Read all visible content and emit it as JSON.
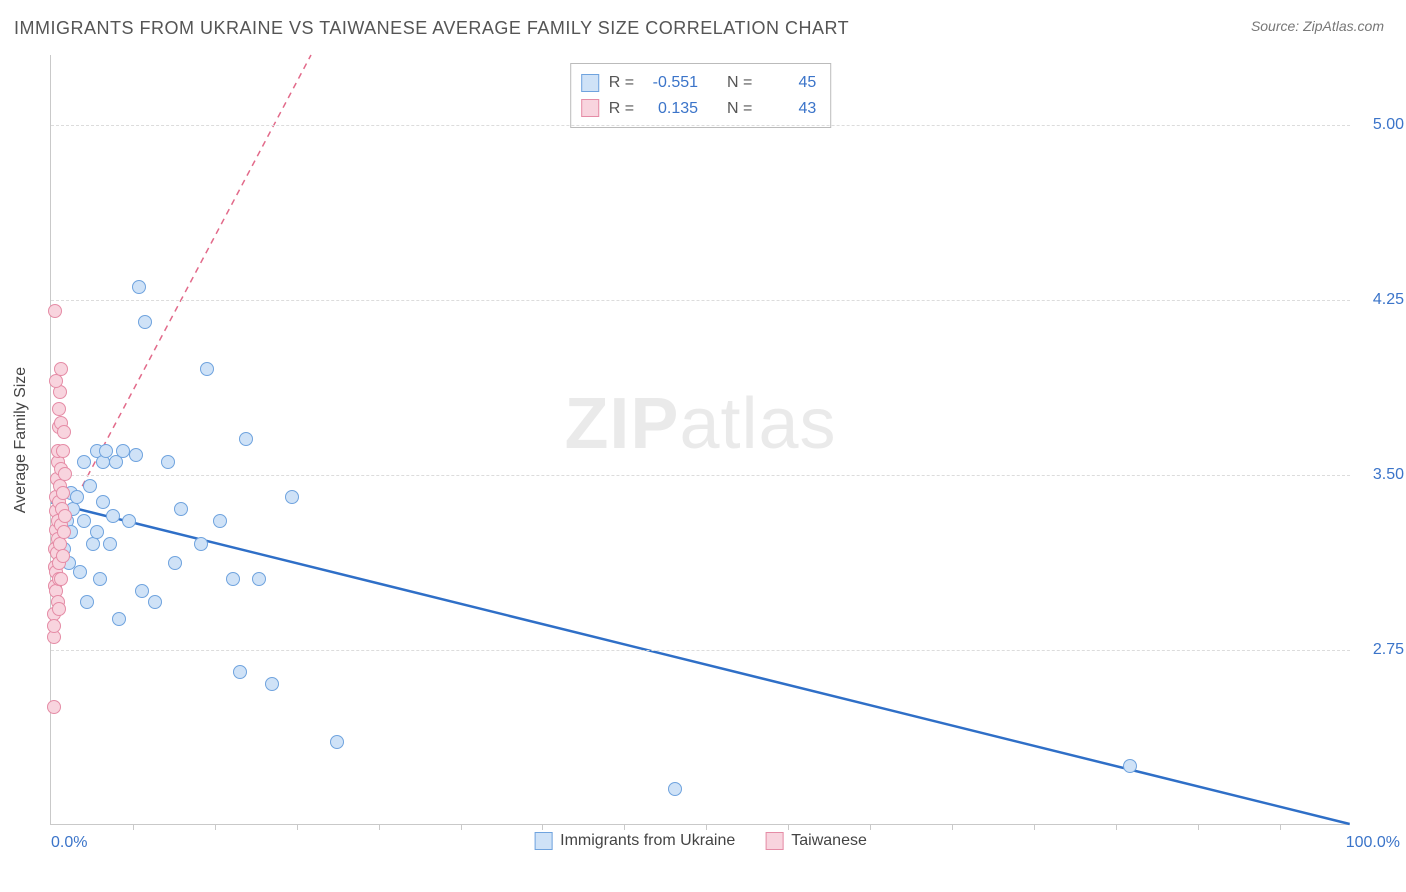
{
  "title": "IMMIGRANTS FROM UKRAINE VS TAIWANESE AVERAGE FAMILY SIZE CORRELATION CHART",
  "source_prefix": "Source: ",
  "source_name": "ZipAtlas.com",
  "watermark_bold": "ZIP",
  "watermark_light": "atlas",
  "chart": {
    "type": "scatter",
    "y_axis_label": "Average Family Size",
    "x_min_label": "0.0%",
    "x_max_label": "100.0%",
    "xlim": [
      0,
      100
    ],
    "ylim": [
      2.0,
      5.3
    ],
    "y_gridlines": [
      2.75,
      3.5,
      4.25,
      5.0
    ],
    "y_tick_labels": [
      "2.75",
      "3.50",
      "4.25",
      "5.00"
    ],
    "x_ticks": [
      6.3,
      12.6,
      18.9,
      25.2,
      31.5,
      37.8,
      44.1,
      50.4,
      56.7,
      63.0,
      69.3,
      75.6,
      81.9,
      88.2,
      94.5
    ],
    "grid_color": "#dcdcdc",
    "axis_color": "#c9c9c9",
    "tick_label_color": "#3b74c9",
    "background_color": "#ffffff",
    "marker_radius": 7,
    "marker_stroke_width": 1.2,
    "series": [
      {
        "id": "ukraine",
        "label": "Immigrants from Ukraine",
        "r_label": "R =",
        "r_value": "-0.551",
        "n_label": "N =",
        "n_value": "45",
        "fill": "#cfe2f7",
        "stroke": "#6fa3de",
        "trend_color": "#2f6fc7",
        "trend_dash": "none",
        "trend_width": 2.5,
        "trend": {
          "x1": 0,
          "y1": 3.38,
          "x2": 100,
          "y2": 2.0
        },
        "points": [
          [
            1.0,
            3.18
          ],
          [
            1.2,
            3.3
          ],
          [
            1.4,
            3.12
          ],
          [
            1.5,
            3.42
          ],
          [
            1.5,
            3.25
          ],
          [
            1.7,
            3.35
          ],
          [
            2.0,
            3.4
          ],
          [
            2.2,
            3.08
          ],
          [
            2.5,
            3.3
          ],
          [
            2.5,
            3.55
          ],
          [
            2.8,
            2.95
          ],
          [
            3.0,
            3.45
          ],
          [
            3.2,
            3.2
          ],
          [
            3.5,
            3.6
          ],
          [
            3.5,
            3.25
          ],
          [
            3.8,
            3.05
          ],
          [
            4.0,
            3.55
          ],
          [
            4.0,
            3.38
          ],
          [
            4.2,
            3.6
          ],
          [
            4.5,
            3.2
          ],
          [
            4.8,
            3.32
          ],
          [
            5.0,
            3.55
          ],
          [
            5.2,
            2.88
          ],
          [
            5.5,
            3.6
          ],
          [
            6.0,
            3.3
          ],
          [
            6.5,
            3.58
          ],
          [
            6.8,
            4.3
          ],
          [
            7.0,
            3.0
          ],
          [
            7.2,
            4.15
          ],
          [
            8.0,
            2.95
          ],
          [
            9.0,
            3.55
          ],
          [
            9.5,
            3.12
          ],
          [
            10.0,
            3.35
          ],
          [
            11.5,
            3.2
          ],
          [
            12.0,
            3.95
          ],
          [
            13.0,
            3.3
          ],
          [
            14.0,
            3.05
          ],
          [
            15.0,
            3.65
          ],
          [
            14.5,
            2.65
          ],
          [
            16.0,
            3.05
          ],
          [
            17.0,
            2.6
          ],
          [
            18.5,
            3.4
          ],
          [
            22.0,
            2.35
          ],
          [
            48.0,
            2.15
          ],
          [
            83.0,
            2.25
          ]
        ]
      },
      {
        "id": "taiwanese",
        "label": "Taiwanese",
        "r_label": "R =",
        "r_value": "0.135",
        "n_label": "N =",
        "n_value": "43",
        "fill": "#f8d4de",
        "stroke": "#e58ca6",
        "trend_color": "#e26a8a",
        "trend_dash": "6 5",
        "trend_width": 1.5,
        "trend": {
          "x1": 0,
          "y1": 3.2,
          "x2": 20,
          "y2": 5.3
        },
        "points": [
          [
            0.2,
            2.8
          ],
          [
            0.2,
            2.9
          ],
          [
            0.3,
            3.02
          ],
          [
            0.3,
            3.1
          ],
          [
            0.3,
            3.18
          ],
          [
            0.35,
            3.26
          ],
          [
            0.35,
            3.34
          ],
          [
            0.4,
            3.0
          ],
          [
            0.4,
            3.4
          ],
          [
            0.4,
            3.08
          ],
          [
            0.45,
            3.16
          ],
          [
            0.45,
            3.48
          ],
          [
            0.5,
            3.22
          ],
          [
            0.5,
            3.55
          ],
          [
            0.5,
            2.95
          ],
          [
            0.55,
            3.3
          ],
          [
            0.55,
            3.6
          ],
          [
            0.6,
            3.05
          ],
          [
            0.6,
            3.7
          ],
          [
            0.6,
            3.38
          ],
          [
            0.65,
            3.12
          ],
          [
            0.65,
            3.78
          ],
          [
            0.7,
            3.2
          ],
          [
            0.7,
            3.85
          ],
          [
            0.7,
            3.45
          ],
          [
            0.75,
            3.28
          ],
          [
            0.8,
            3.05
          ],
          [
            0.8,
            3.52
          ],
          [
            0.8,
            3.72
          ],
          [
            0.85,
            3.35
          ],
          [
            0.9,
            3.15
          ],
          [
            0.9,
            3.6
          ],
          [
            0.95,
            3.42
          ],
          [
            1.0,
            3.68
          ],
          [
            1.0,
            3.25
          ],
          [
            1.05,
            3.5
          ],
          [
            1.1,
            3.32
          ],
          [
            0.3,
            4.2
          ],
          [
            0.2,
            2.5
          ],
          [
            0.25,
            2.85
          ],
          [
            0.6,
            2.92
          ],
          [
            0.4,
            3.9
          ],
          [
            0.8,
            3.95
          ]
        ]
      }
    ]
  },
  "bottom_legend_order": [
    "ukraine",
    "taiwanese"
  ]
}
